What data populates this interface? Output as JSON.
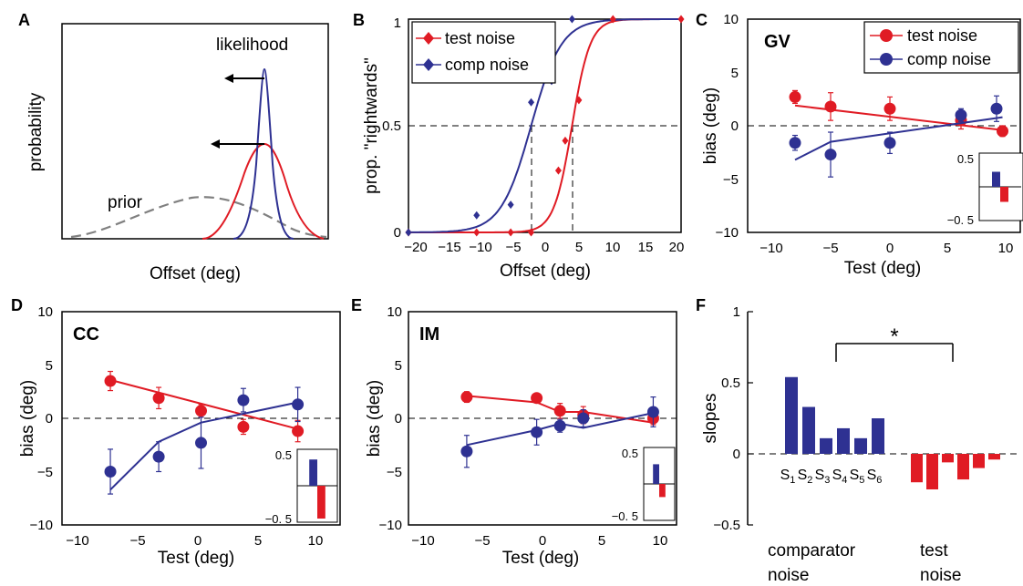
{
  "colors": {
    "red": "#e01b24",
    "blue": "#2e3192",
    "prior": "#808080"
  },
  "panel_a": {
    "label": "A",
    "ylabel": "probability",
    "xlabel": "Offset (deg)",
    "likelihood_label": "likelihood",
    "prior_label": "prior"
  },
  "panel_b": {
    "label": "B",
    "ylabel": "prop. \"rightwards\"",
    "xlabel": "Offset (deg)",
    "legend": [
      "test noise",
      "comp noise"
    ],
    "ytick_labels": [
      "0",
      "0.5",
      "1"
    ],
    "xtick_labels": [
      "−20",
      "−15",
      "−10",
      "−5",
      "0",
      "5",
      "10",
      "15",
      "20"
    ]
  },
  "panel_c": {
    "label": "C",
    "subject": "GV",
    "ylabel": "bias (deg)",
    "xlabel": "Test (deg)",
    "legend": [
      "test noise",
      "comp noise"
    ],
    "ytick_labels": [
      "−10",
      "−5",
      "0",
      "5",
      "10"
    ],
    "xtick_labels": [
      "−10",
      "−5",
      "0",
      "5",
      "10"
    ],
    "inset_ticks": [
      "0.5",
      "−0. 5"
    ]
  },
  "panel_d": {
    "label": "D",
    "subject": "CC",
    "ylabel": "bias (deg)",
    "xlabel": "Test (deg)",
    "ytick_labels": [
      "−10",
      "−5",
      "0",
      "5",
      "10"
    ],
    "xtick_labels": [
      "−10",
      "−5",
      "0",
      "5",
      "10"
    ],
    "inset_ticks": [
      "0.5",
      "−0. 5"
    ]
  },
  "panel_e": {
    "label": "E",
    "subject": "IM",
    "ylabel": "bias (deg)",
    "xlabel": "Test (deg)",
    "ytick_labels": [
      "−10",
      "−5",
      "0",
      "5",
      "10"
    ],
    "xtick_labels": [
      "−10",
      "−5",
      "0",
      "5",
      "10"
    ],
    "inset_ticks": [
      "0.5",
      "−0. 5"
    ]
  },
  "panel_f": {
    "label": "F",
    "ylabel": "slopes",
    "ytick_labels": [
      "−0.5",
      "0",
      "0.5",
      "1"
    ],
    "star": "*",
    "group_labels": [
      [
        "comparator",
        "noise"
      ],
      [
        "test",
        "noise"
      ]
    ],
    "subject_labels": [
      "S",
      "S",
      "S",
      "S",
      "S",
      "S"
    ],
    "subject_subs": [
      "1",
      "2",
      "3",
      "4",
      "5",
      "6"
    ]
  },
  "chart_data": [
    {
      "panel": "A",
      "type": "line",
      "series": [
        {
          "name": "prior",
          "x": [
            -6,
            -4,
            -2,
            0,
            2,
            4,
            6
          ],
          "y": [
            0.03,
            0.1,
            0.2,
            0.24,
            0.2,
            0.1,
            0.03
          ]
        },
        {
          "name": "likelihood",
          "x": [
            2.5,
            3.5,
            4.5,
            5.5,
            6.5,
            7.5
          ],
          "y": [
            0.02,
            0.35,
            0.96,
            0.35,
            0.02,
            0
          ]
        }
      ]
    },
    {
      "panel": "B",
      "type": "line",
      "xlabel": "Offset (deg)",
      "ylabel": "prop. \"rightwards\"",
      "xlim": [
        -20,
        20
      ],
      "ylim": [
        0,
        1
      ],
      "legend_position": "top-left",
      "series": [
        {
          "name": "test noise",
          "pse": 4,
          "slope": 0.75,
          "points": [
            [
              -20,
              0
            ],
            [
              -10,
              0
            ],
            [
              -5,
              0
            ],
            [
              -2,
              0
            ],
            [
              2,
              0.29
            ],
            [
              3,
              0.43
            ],
            [
              5,
              0.62
            ],
            [
              10,
              1
            ],
            [
              20,
              1
            ]
          ]
        },
        {
          "name": "comp noise",
          "pse": -2,
          "slope": 0.45,
          "points": [
            [
              -20,
              0
            ],
            [
              -10,
              0.08
            ],
            [
              -5,
              0.13
            ],
            [
              -2,
              0.61
            ],
            [
              1,
              0.71
            ],
            [
              4,
              1
            ]
          ]
        }
      ],
      "reference_lines": {
        "y": 0.5,
        "x": [
          -2,
          4
        ]
      }
    },
    {
      "panel": "C",
      "type": "scatter",
      "subject": "GV",
      "xlim": [
        -12,
        11
      ],
      "ylim": [
        -10,
        10
      ],
      "legend_position": "top-right",
      "series": [
        {
          "name": "test noise",
          "x": [
            -8,
            -5,
            0,
            6,
            9.5
          ],
          "y": [
            2.7,
            1.8,
            1.6,
            0.5,
            -0.5
          ],
          "err": [
            0.6,
            1.3,
            1.1,
            0.8,
            0.5
          ],
          "fit": [
            [
              -8,
              1.9
            ],
            [
              9.5,
              -0.4
            ]
          ]
        },
        {
          "name": "comp noise",
          "x": [
            -8,
            -5,
            0,
            6,
            9
          ],
          "y": [
            -1.6,
            -2.7,
            -1.6,
            1.0,
            1.6
          ],
          "err": [
            0.7,
            2.1,
            1.0,
            0.6,
            1.2
          ],
          "fit": [
            [
              -8,
              -3.2
            ],
            [
              -5,
              -1.5
            ],
            [
              9.5,
              0.8
            ]
          ]
        }
      ],
      "inset": {
        "ylim": [
          -0.5,
          0.5
        ],
        "values": [
          0.25,
          -0.25
        ]
      }
    },
    {
      "panel": "D",
      "type": "scatter",
      "subject": "CC",
      "xlim": [
        -12,
        11
      ],
      "ylim": [
        -10,
        10
      ],
      "series": [
        {
          "name": "test noise",
          "x": [
            -8,
            -4,
            -0.5,
            3,
            7.5
          ],
          "y": [
            3.5,
            1.9,
            0.7,
            -0.8,
            -1.2
          ],
          "err": [
            0.9,
            1.0,
            0.6,
            0.7,
            1.0
          ],
          "fit": [
            [
              -8,
              3.6
            ],
            [
              7.5,
              -1.0
            ]
          ]
        },
        {
          "name": "comp noise",
          "x": [
            -8,
            -4,
            -0.5,
            3,
            7.5
          ],
          "y": [
            -5.0,
            -3.6,
            -2.3,
            1.7,
            1.3
          ],
          "err": [
            2.1,
            1.4,
            2.4,
            1.1,
            1.6
          ],
          "fit": [
            [
              -8,
              -6.7
            ],
            [
              -4,
              -2.2
            ],
            [
              -0.5,
              -0.4
            ],
            [
              7.5,
              1.5
            ]
          ]
        }
      ],
      "inset": {
        "ylim": [
          -0.5,
          0.5
        ],
        "values": [
          0.4,
          -0.5
        ]
      }
    },
    {
      "panel": "E",
      "type": "scatter",
      "subject": "IM",
      "xlim": [
        -12,
        11
      ],
      "ylim": [
        -10,
        10
      ],
      "series": [
        {
          "name": "test noise",
          "x": [
            -7,
            -1,
            1,
            3,
            9
          ],
          "y": [
            2.0,
            1.9,
            0.7,
            0.3,
            0.0
          ],
          "err": [
            0.5,
            0.3,
            0.7,
            0.8,
            0.6
          ],
          "fit": [
            [
              -7,
              2.1
            ],
            [
              -1,
              1.5
            ],
            [
              1,
              0.6
            ],
            [
              3,
              0.6
            ],
            [
              9,
              -0.4
            ]
          ]
        },
        {
          "name": "comp noise",
          "x": [
            -7,
            -1,
            1,
            3,
            9
          ],
          "y": [
            -3.1,
            -1.3,
            -0.7,
            0.0,
            0.6
          ],
          "err": [
            1.5,
            1.2,
            0.6,
            0.8,
            1.4
          ],
          "fit": [
            [
              -7,
              -2.5
            ],
            [
              -1,
              -1.1
            ],
            [
              1,
              -0.5
            ],
            [
              3,
              -0.9
            ],
            [
              9,
              0.5
            ]
          ]
        }
      ],
      "inset": {
        "ylim": [
          -0.5,
          0.5
        ],
        "values": [
          0.3,
          -0.2
        ]
      }
    },
    {
      "panel": "F",
      "type": "bar",
      "ylabel": "slopes",
      "ylim": [
        -0.5,
        1
      ],
      "series": [
        {
          "name": "comparator noise",
          "values": [
            0.54,
            0.33,
            0.11,
            0.18,
            0.11,
            0.25
          ]
        },
        {
          "name": "test noise",
          "values": [
            -0.2,
            -0.25,
            -0.06,
            -0.18,
            -0.1,
            -0.04
          ]
        }
      ]
    }
  ]
}
